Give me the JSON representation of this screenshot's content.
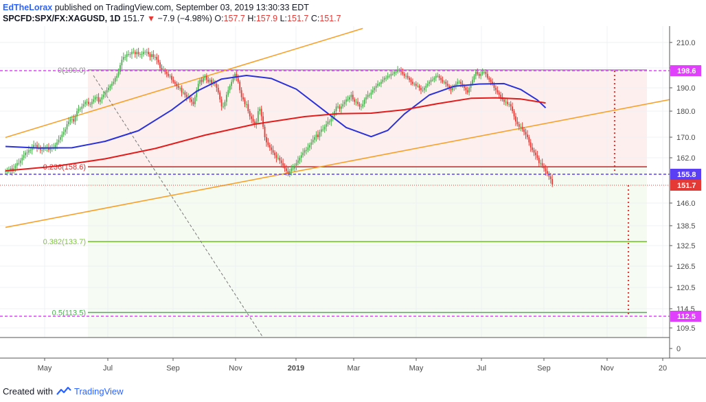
{
  "header": {
    "author": "EdTheLorax",
    "published": "published on TradingView.com, September 03, 2019 13:30:33 EDT",
    "symbol": "SPCFD:SPX/FX:XAGUSD, 1D",
    "last": "151.7",
    "change_arrow": "▼",
    "change": "−7.9 (−4.98%)",
    "o_label": "O:",
    "o": "157.7",
    "h_label": "H:",
    "h": "157.9",
    "l_label": "L:",
    "l": "151.7",
    "c_label": "C:",
    "c": "151.7"
  },
  "footer": {
    "created_with": "Created with",
    "brand": "TradingView",
    "logo_icon": "tradingview-logo-icon"
  },
  "colors": {
    "up": "#4caf50",
    "down": "#e53935",
    "ma_fast": "#2b31d8",
    "ma_slow": "#e31b1b",
    "trend": "#f7a12b",
    "fib_red": "#d32f2f",
    "fib_green": "#7cc53a",
    "magenta": "#e040fb",
    "projection": "#e53935",
    "dashed_gray": "#777777"
  },
  "chart_data": {
    "type": "candlestick",
    "y_axis": {
      "ticks": [
        "210.0",
        "200.0",
        "190.0",
        "180.0",
        "170.0",
        "162.0",
        "146.0",
        "138.5",
        "132.5",
        "126.5",
        "120.5",
        "114.5",
        "109.5",
        "0"
      ],
      "price_labels": [
        {
          "label": "198.6",
          "kind": "magenta",
          "value": 198.6
        },
        {
          "label": "155.8",
          "kind": "blue",
          "value": 155.8
        },
        {
          "label": "151.7",
          "kind": "red",
          "value": 151.7
        },
        {
          "label": "112.5",
          "kind": "magenta",
          "value": 112.5
        }
      ]
    },
    "x_axis": {
      "ticks": [
        "May",
        "Jul",
        "Sep",
        "Nov",
        "2019",
        "Mar",
        "May",
        "Jul",
        "Sep",
        "Nov",
        "20"
      ]
    },
    "fib_levels": [
      {
        "label": "0(199.0)",
        "value": 199.0,
        "color": "#999999"
      },
      {
        "label": "0.236(158.6)",
        "value": 158.6,
        "color": "#d32f2f"
      },
      {
        "label": "0.382(133.7)",
        "value": 133.7,
        "color": "#7cc53a"
      },
      {
        "label": "0.5(113.5)",
        "value": 113.5,
        "color": "#4caf50"
      }
    ],
    "horizontal_lines": [
      {
        "name": "resistance-198.6",
        "value": 198.6,
        "style": "magenta-dashed"
      },
      {
        "name": "support-155.8",
        "value": 155.8,
        "style": "blue-dashed"
      },
      {
        "name": "last-151.7",
        "value": 151.7,
        "style": "red-dotted"
      },
      {
        "name": "target-112.5",
        "value": 112.5,
        "style": "magenta-dashed"
      }
    ],
    "candles_by_month": [
      {
        "month": "Apr 2018",
        "closes": [
          157,
          157,
          157,
          158,
          157
        ]
      },
      {
        "month": "May 2018",
        "closes": [
          158,
          159,
          160,
          160,
          161,
          162,
          163,
          164,
          164,
          165,
          165,
          166,
          167,
          167,
          166,
          166,
          165,
          165,
          166,
          166,
          166
        ]
      },
      {
        "month": "Jun 2018",
        "closes": [
          165,
          166,
          166,
          166,
          167,
          168,
          169,
          170,
          171,
          172,
          173,
          175,
          176,
          177,
          177,
          176,
          178,
          180,
          181,
          181
        ]
      },
      {
        "month": "Jul 2018",
        "closes": [
          182,
          183,
          184,
          184,
          183,
          183,
          184,
          185,
          186,
          186,
          184,
          185,
          186,
          187,
          188,
          189,
          190,
          191,
          192,
          193,
          195
        ]
      },
      {
        "month": "Aug 2018",
        "closes": [
          196,
          198,
          201,
          203,
          204,
          204,
          205,
          205,
          205,
          206,
          206,
          205,
          206,
          205,
          205,
          205,
          206,
          206,
          206,
          205,
          204,
          205,
          204
        ]
      },
      {
        "month": "Sep 2018",
        "closes": [
          204,
          203,
          202,
          200,
          199,
          199,
          198,
          197,
          196,
          196,
          194,
          193,
          192,
          191,
          190,
          190,
          188,
          188,
          187,
          186
        ]
      },
      {
        "month": "Oct 2018",
        "closes": [
          186,
          185,
          184,
          183,
          186,
          189,
          192,
          194,
          193,
          195,
          196,
          194,
          193,
          194,
          192,
          193,
          192,
          190,
          188,
          185,
          182,
          182,
          184
        ]
      },
      {
        "month": "Nov 2018",
        "closes": [
          187,
          189,
          191,
          193,
          195,
          197,
          195,
          193,
          189,
          186,
          185,
          183,
          183,
          180,
          178,
          177,
          176,
          175,
          176,
          180,
          181
        ]
      },
      {
        "month": "Dec 2018",
        "closes": [
          178,
          174,
          170,
          168,
          167,
          166,
          165,
          164,
          163,
          162,
          162,
          161,
          160,
          159,
          158,
          157,
          156,
          157,
          158
        ]
      },
      {
        "month": "Jan 2019",
        "closes": [
          158,
          159,
          160,
          161,
          162,
          163,
          164,
          165,
          165,
          166,
          167,
          168,
          169,
          170,
          171,
          170,
          172,
          173,
          173,
          174,
          175,
          176
        ]
      },
      {
        "month": "Feb 2019",
        "closes": [
          176,
          177,
          178,
          180,
          182,
          182,
          181,
          182,
          183,
          184,
          185,
          185,
          186,
          187,
          185,
          184,
          184,
          183,
          182
        ]
      },
      {
        "month": "Mar 2019",
        "closes": [
          182,
          183,
          185,
          186,
          187,
          187,
          188,
          189,
          190,
          191,
          192,
          192,
          193,
          194,
          195,
          195,
          196,
          196,
          197,
          197,
          198
        ]
      },
      {
        "month": "Apr 2019",
        "closes": [
          198,
          199,
          199,
          198,
          197,
          196,
          196,
          195,
          194,
          193,
          192,
          192,
          191,
          191,
          190,
          189,
          189,
          190,
          191,
          192,
          193,
          194
        ]
      },
      {
        "month": "May 2019",
        "closes": [
          194,
          195,
          196,
          196,
          195,
          194,
          193,
          193,
          192,
          191,
          190,
          189,
          190,
          191,
          192,
          193,
          193,
          192,
          191,
          190,
          189,
          188
        ]
      },
      {
        "month": "Jun 2019",
        "closes": [
          190,
          192,
          194,
          196,
          198,
          197,
          196,
          197,
          198,
          198,
          197,
          195,
          194,
          193,
          192,
          190,
          189,
          188,
          187,
          186
        ]
      },
      {
        "month": "Jul 2019",
        "closes": [
          185,
          184,
          184,
          183,
          183,
          182,
          180,
          178,
          176,
          175,
          174,
          174,
          173,
          172,
          171,
          170,
          168,
          166,
          165,
          164,
          163,
          162,
          160
        ]
      },
      {
        "month": "Aug 2019",
        "closes": [
          160,
          159,
          158,
          157,
          156,
          155,
          154,
          152
        ]
      }
    ],
    "moving_averages": [
      {
        "name": "fast-ma",
        "points": [
          [
            0,
            166.4
          ],
          [
            20,
            165.8
          ],
          [
            40,
            165.9
          ],
          [
            60,
            168.4
          ],
          [
            80,
            172.5
          ],
          [
            100,
            180.5
          ],
          [
            115,
            188.5
          ],
          [
            130,
            194.4
          ],
          [
            145,
            196.2
          ],
          [
            160,
            194.7
          ],
          [
            175,
            189.4
          ],
          [
            190,
            181.2
          ],
          [
            205,
            173.7
          ],
          [
            220,
            170.2
          ],
          [
            230,
            172.6
          ],
          [
            240,
            178.9
          ],
          [
            255,
            186.9
          ],
          [
            270,
            190.8
          ],
          [
            285,
            191.9
          ],
          [
            300,
            192.1
          ],
          [
            310,
            189.3
          ],
          [
            320,
            184.8
          ],
          [
            325,
            181.4
          ]
        ]
      },
      {
        "name": "slow-ma",
        "points": [
          [
            0,
            157.1
          ],
          [
            30,
            158.8
          ],
          [
            60,
            161.6
          ],
          [
            90,
            165.6
          ],
          [
            120,
            170.8
          ],
          [
            150,
            175.0
          ],
          [
            180,
            177.9
          ],
          [
            200,
            179.0
          ],
          [
            220,
            179.2
          ],
          [
            240,
            180.6
          ],
          [
            260,
            183.2
          ],
          [
            280,
            185.5
          ],
          [
            295,
            185.7
          ],
          [
            310,
            185.2
          ],
          [
            325,
            183.5
          ]
        ]
      }
    ],
    "trend_lines": [
      {
        "name": "upper-channel",
        "from": [
          0,
          169.9
        ],
        "to": [
          215,
          216.0
        ]
      },
      {
        "name": "lower-channel",
        "from": [
          0,
          138.0
        ],
        "to": [
          400,
          185.0
        ]
      }
    ]
  }
}
